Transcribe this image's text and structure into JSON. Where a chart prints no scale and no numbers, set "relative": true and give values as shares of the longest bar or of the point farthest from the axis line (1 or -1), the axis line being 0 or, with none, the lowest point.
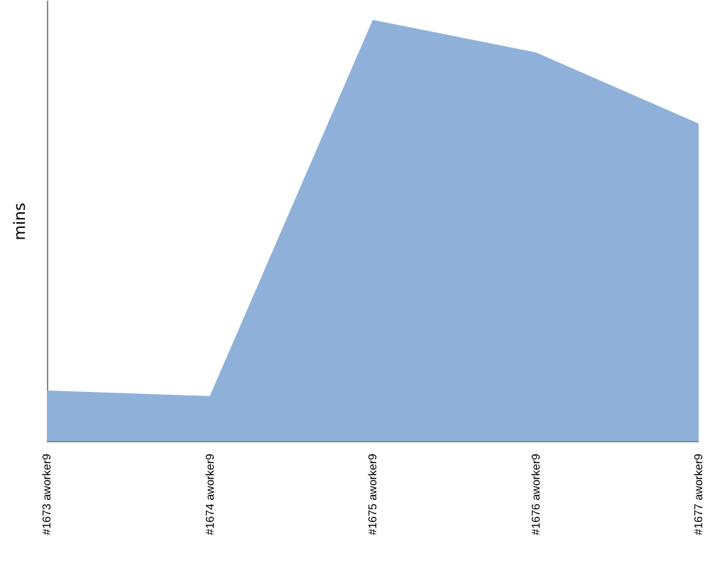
{
  "chart_data": {
    "type": "area",
    "ylabel": "mins",
    "relative": true,
    "categories": [
      "#1673 aworker9",
      "#1674 aworker9",
      "#1675 aworker9",
      "#1676 aworker9",
      "#1677 aworker9"
    ],
    "series": [
      {
        "color": "#8fb1d9",
        "values": [
          0.121,
          0.108,
          1,
          0.923,
          0.754
        ]
      }
    ]
  }
}
